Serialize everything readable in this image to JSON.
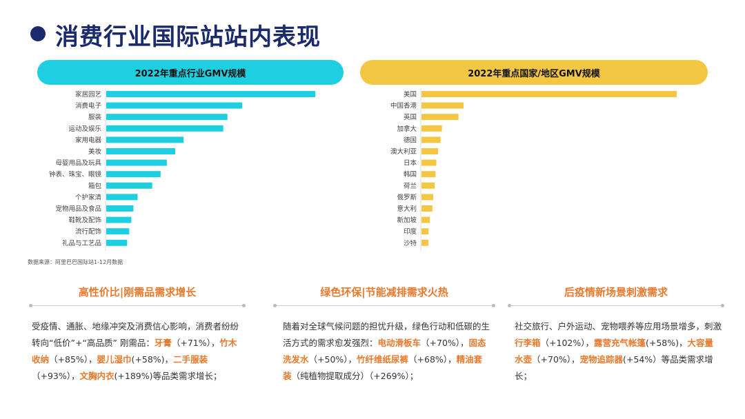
{
  "page_title": "消费行业国际站站内表现",
  "left_chart_title": "2022年重点行业GMV规模",
  "right_chart_title": "2022年重点国家/地区GMV规模",
  "source_note": "数据来源：阿里巴巴国际站1-12月数据",
  "colors": {
    "cyan": "#1dcfe0",
    "gold": "#f3c744",
    "orange": "#e9792c",
    "navy": "#1a2a6c"
  },
  "chart_data": [
    {
      "type": "bar",
      "orientation": "horizontal",
      "title": "2022年重点行业GMV规模",
      "categories": [
        "家居园艺",
        "消费电子",
        "服装",
        "运动及娱乐",
        "家用电器",
        "美妆",
        "母婴用品及玩具",
        "钟表、珠宝、眼镜",
        "箱包",
        "个护家清",
        "宠物用品及食品",
        "鞋靴及配饰",
        "流行配饰",
        "礼品与工艺品"
      ],
      "values": [
        100,
        65,
        58,
        56,
        37,
        33,
        29,
        26,
        22,
        15,
        13,
        12,
        11,
        10
      ],
      "xlim": [
        0,
        100
      ],
      "color": "#1dcfe0"
    },
    {
      "type": "bar",
      "orientation": "horizontal",
      "title": "2022年重点国家/地区GMV规模",
      "categories": [
        "美国",
        "中国香港",
        "英国",
        "加拿大",
        "德国",
        "澳大利亚",
        "日本",
        "韩国",
        "荷兰",
        "俄罗斯",
        "意大利",
        "新加坡",
        "印度",
        "沙特"
      ],
      "values": [
        100,
        16.5,
        14.5,
        8,
        7.5,
        6.5,
        5.8,
        5.5,
        5.2,
        4.6,
        4.3,
        3.3,
        2.8,
        2.7
      ],
      "xlim": [
        0,
        100
      ],
      "color": "#f3c744"
    }
  ],
  "sections": [
    {
      "title": "高性价比|刚需品需求增长",
      "segments": [
        {
          "t": "受疫情、通胀、地缘冲突及消费信心影响，消费者纷纷转向“低价”+“高品质” 刚需品：",
          "h": false
        },
        {
          "t": "牙膏",
          "h": true
        },
        {
          "t": "（+71%），",
          "h": false
        },
        {
          "t": "竹木收纳",
          "h": true
        },
        {
          "t": "（+85%），",
          "h": false
        },
        {
          "t": "婴儿湿巾",
          "h": true
        },
        {
          "t": "(+58%)，",
          "h": false
        },
        {
          "t": "二手服装",
          "h": true
        },
        {
          "t": "（+93%），",
          "h": false
        },
        {
          "t": "文胸内衣",
          "h": true
        },
        {
          "t": "(+189%)等品类需求增长；",
          "h": false
        }
      ]
    },
    {
      "title": "绿色环保|节能减排需求火热",
      "segments": [
        {
          "t": "随着对全球气候问题的担忧升级，绿色行动和低碳的生活方式的需求愈发强烈：",
          "h": false
        },
        {
          "t": "电动滑板车",
          "h": true
        },
        {
          "t": "（+70%），",
          "h": false
        },
        {
          "t": "固态洗发水",
          "h": true
        },
        {
          "t": "（+50%），",
          "h": false
        },
        {
          "t": "竹纤维纸尿裤",
          "h": true
        },
        {
          "t": "（+68%），",
          "h": false
        },
        {
          "t": "精油套装",
          "h": true
        },
        {
          "t": "（纯植物提取成分）（+269%）；",
          "h": false
        }
      ]
    },
    {
      "title": "后疫情新场景刺激需求",
      "segments": [
        {
          "t": "社交旅行、户外运动、宠物喂养等应用场景增多，刺激",
          "h": false
        },
        {
          "t": "行李箱",
          "h": true
        },
        {
          "t": "（+102%），",
          "h": false
        },
        {
          "t": "露营充气帐篷",
          "h": true
        },
        {
          "t": "(+58%)，",
          "h": false
        },
        {
          "t": "大容量水壶",
          "h": true
        },
        {
          "t": "（+70%），",
          "h": false
        },
        {
          "t": "宠物追踪器",
          "h": true
        },
        {
          "t": "(+54%）等品类需求增长；",
          "h": false
        }
      ]
    }
  ]
}
